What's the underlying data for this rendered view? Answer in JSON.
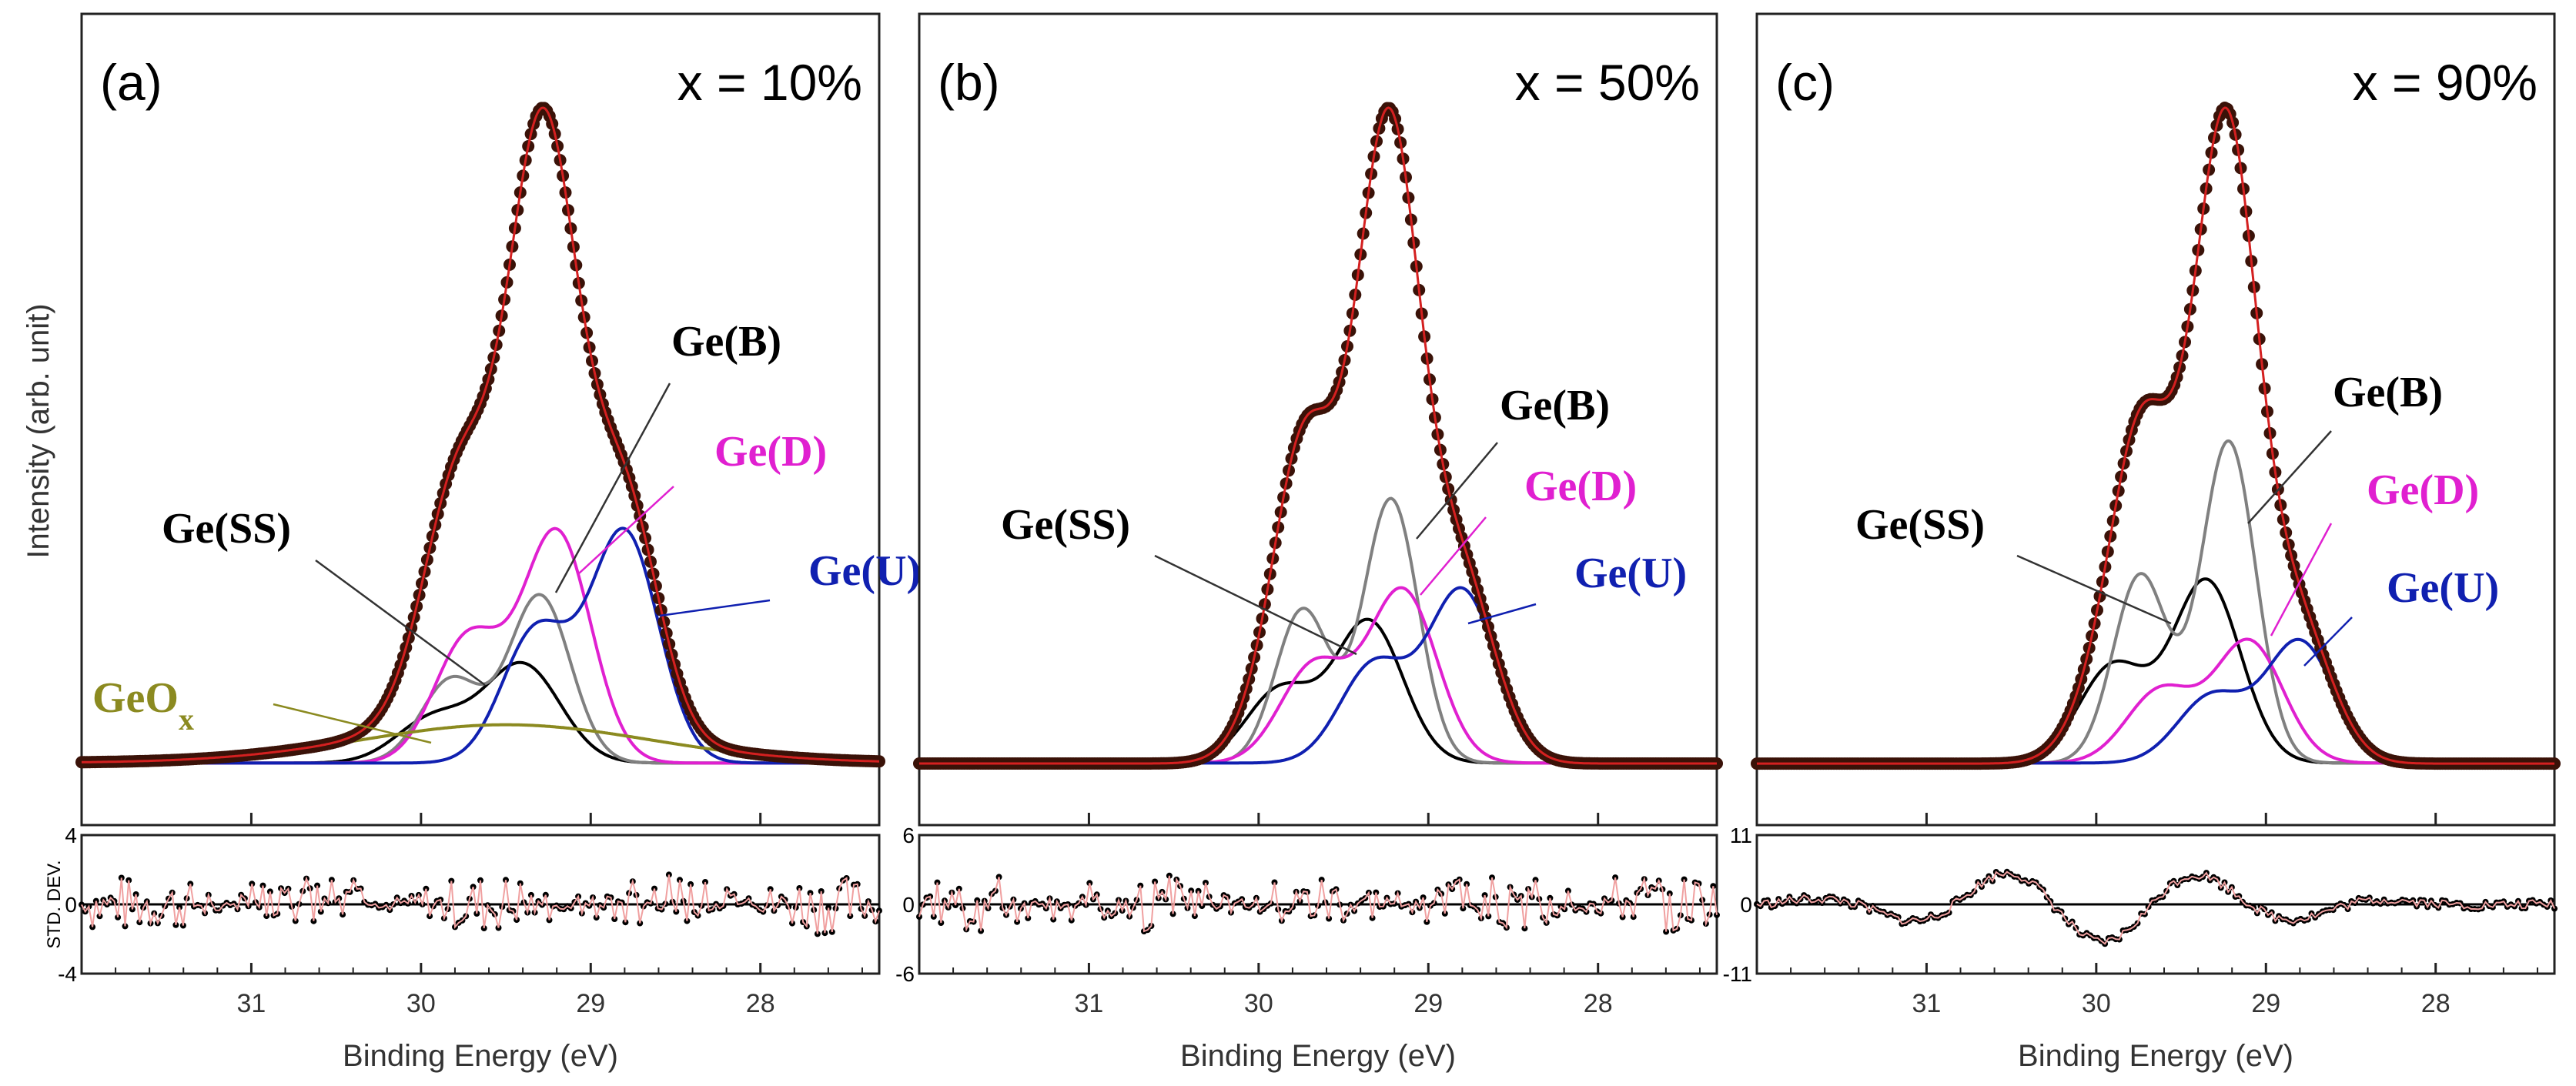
{
  "chart_data": [
    {
      "type": "line",
      "panel_label": "(a)",
      "composition": "x = 10%",
      "xlabel": "Binding Energy (eV)",
      "ylabel": "Intensity (arb. unit)",
      "residual_ylabel": "STD. DEV.",
      "x_range": [
        32.0,
        27.3
      ],
      "x_ticks": [
        31,
        30,
        29,
        28
      ],
      "x_tick_labels": [
        "31",
        "30",
        "29",
        "28"
      ],
      "y_range": [
        0,
        1.0
      ],
      "residual_range": [
        -4,
        4
      ],
      "residual_tick_labels": [
        "4",
        "0",
        "-4"
      ],
      "baseline": 0.01,
      "components": [
        {
          "name": "Ge(SS)",
          "color": "#000000",
          "peaks": [
            [
              29.4,
              0.14,
              0.22
            ],
            [
              29.92,
              0.065,
              0.22
            ]
          ]
        },
        {
          "name": "Ge(B)",
          "color": "#808080",
          "peaks": [
            [
              29.3,
              0.24,
              0.18
            ],
            [
              29.82,
              0.12,
              0.18
            ]
          ]
        },
        {
          "name": "Ge(D)",
          "color": "#e020d0",
          "peaks": [
            [
              29.2,
              0.33,
              0.2
            ],
            [
              29.72,
              0.18,
              0.2
            ]
          ]
        },
        {
          "name": "Ge(U)",
          "color": "#1020b0",
          "peaks": [
            [
              28.8,
              0.33,
              0.2
            ],
            [
              29.32,
              0.19,
              0.2
            ]
          ]
        },
        {
          "name": "GeOx",
          "color": "#8b8a20",
          "peaks": [
            [
              29.5,
              0.055,
              0.85
            ]
          ]
        }
      ],
      "envelope_peak": 1.0,
      "labels": [
        {
          "text": "Ge(B)",
          "color": "#000000"
        },
        {
          "text": "Ge(D)",
          "color": "#e020d0"
        },
        {
          "text": "Ge(SS)",
          "color": "#000000"
        },
        {
          "text": "Ge(U)",
          "color": "#1020b0"
        },
        {
          "text": "GeO",
          "sub": "x",
          "color": "#8b8a20"
        }
      ]
    },
    {
      "type": "line",
      "panel_label": "(b)",
      "composition": "x = 50%",
      "xlabel": "Binding Energy (eV)",
      "x_range": [
        32.0,
        27.3
      ],
      "x_ticks": [
        31,
        30,
        29,
        28
      ],
      "x_tick_labels": [
        "31",
        "30",
        "29",
        "28"
      ],
      "y_range": [
        0,
        1.0
      ],
      "residual_range": [
        -6,
        6
      ],
      "residual_tick_labels": [
        "6",
        "0",
        "-6"
      ],
      "baseline": 0.01,
      "components": [
        {
          "name": "Ge(SS)",
          "color": "#000000",
          "peaks": [
            [
              29.35,
              0.23,
              0.2
            ],
            [
              29.87,
              0.12,
              0.2
            ]
          ]
        },
        {
          "name": "Ge(B)",
          "color": "#808080",
          "peaks": [
            [
              29.22,
              0.43,
              0.16
            ],
            [
              29.74,
              0.25,
              0.16
            ]
          ]
        },
        {
          "name": "Ge(D)",
          "color": "#e020d0",
          "peaks": [
            [
              29.15,
              0.28,
              0.2
            ],
            [
              29.67,
              0.16,
              0.2
            ]
          ]
        },
        {
          "name": "Ge(U)",
          "color": "#1020b0",
          "peaks": [
            [
              28.8,
              0.28,
              0.2
            ],
            [
              29.32,
              0.16,
              0.2
            ]
          ]
        }
      ],
      "envelope_peak": 1.0,
      "labels": [
        {
          "text": "Ge(B)",
          "color": "#000000"
        },
        {
          "text": "Ge(D)",
          "color": "#e020d0"
        },
        {
          "text": "Ge(SS)",
          "color": "#000000"
        },
        {
          "text": "Ge(U)",
          "color": "#1020b0"
        }
      ]
    },
    {
      "type": "line",
      "panel_label": "(c)",
      "composition": "x = 90%",
      "xlabel": "Binding Energy (eV)",
      "x_range": [
        32.0,
        27.3
      ],
      "x_ticks": [
        31,
        30,
        29,
        28
      ],
      "x_tick_labels": [
        "31",
        "30",
        "29",
        "28"
      ],
      "y_range": [
        0,
        1.0
      ],
      "residual_range": [
        -11,
        11
      ],
      "residual_tick_labels": [
        "11",
        "0",
        "-11"
      ],
      "baseline": 0.01,
      "components": [
        {
          "name": "Ge(SS)",
          "color": "#000000",
          "peaks": [
            [
              29.35,
              0.3,
              0.2
            ],
            [
              29.9,
              0.16,
              0.2
            ]
          ]
        },
        {
          "name": "Ge(B)",
          "color": "#808080",
          "peaks": [
            [
              29.22,
              0.53,
              0.16
            ],
            [
              29.74,
              0.31,
              0.16
            ]
          ]
        },
        {
          "name": "Ge(D)",
          "color": "#e020d0",
          "peaks": [
            [
              29.1,
              0.2,
              0.2
            ],
            [
              29.62,
              0.12,
              0.2
            ]
          ]
        },
        {
          "name": "Ge(U)",
          "color": "#1020b0",
          "peaks": [
            [
              28.8,
              0.2,
              0.2
            ],
            [
              29.32,
              0.11,
              0.2
            ]
          ]
        }
      ],
      "envelope_peak": 1.0,
      "labels": [
        {
          "text": "Ge(B)",
          "color": "#000000"
        },
        {
          "text": "Ge(D)",
          "color": "#e020d0"
        },
        {
          "text": "Ge(SS)",
          "color": "#000000"
        },
        {
          "text": "Ge(U)",
          "color": "#1020b0"
        }
      ]
    }
  ]
}
